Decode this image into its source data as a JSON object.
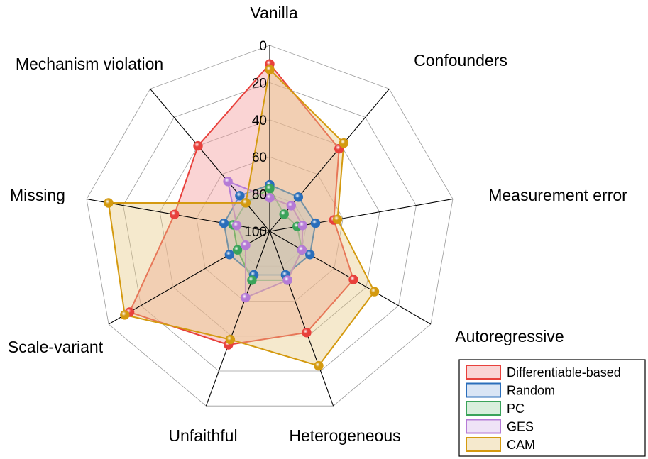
{
  "chart_data": {
    "type": "radar",
    "axes": [
      "Vanilla",
      "Confounders",
      "Measurement error",
      "Autoregressive",
      "Heterogeneous",
      "Unfaithful",
      "Scale-variant",
      "Missing",
      "Mechanism violation"
    ],
    "ticks": [
      "0",
      "20",
      "40",
      "60",
      "80",
      "100"
    ],
    "range": [
      0,
      100
    ],
    "direction": "0 at outer edge, 100 at center",
    "grid": true,
    "legend_position": "bottom-right",
    "series": [
      {
        "name": "Differentiable-based",
        "color": "#e8413c",
        "fill": "rgba(244,160,160,0.45)",
        "values": [
          10,
          42,
          65,
          48,
          42,
          35,
          13,
          48,
          40
        ]
      },
      {
        "name": "Random",
        "color": "#2a6ebb",
        "fill": "rgba(160,190,230,0.40)",
        "values": [
          75,
          76,
          75,
          75,
          75,
          75,
          75,
          75,
          75
        ]
      },
      {
        "name": "PC",
        "color": "#3aa35a",
        "fill": "rgba(160,215,170,0.40)",
        "values": [
          77,
          88,
          85,
          80,
          72,
          72,
          80,
          80,
          80
        ]
      },
      {
        "name": "GES",
        "color": "#b57bd6",
        "fill": "rgba(215,185,235,0.40)",
        "values": [
          82,
          82,
          82,
          80,
          72,
          62,
          85,
          82,
          65
        ]
      },
      {
        "name": "CAM",
        "color": "#d49a10",
        "fill": "rgba(230,200,130,0.40)",
        "values": [
          13,
          38,
          63,
          35,
          23,
          38,
          10,
          12,
          80
        ]
      }
    ]
  }
}
